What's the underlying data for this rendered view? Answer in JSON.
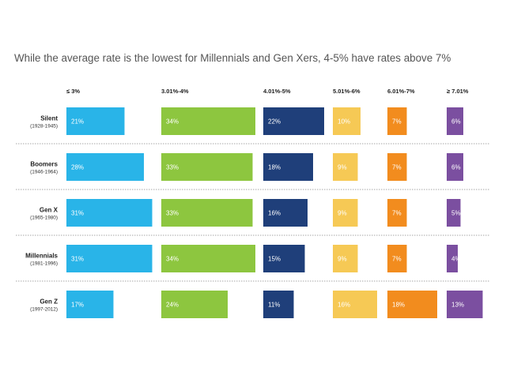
{
  "title": "While the average rate is the lowest for Millennials and Gen Xers, 4-5% have rates above 7%",
  "chart_data": {
    "type": "bar",
    "title": "While the average rate is the lowest for Millennials and Gen Xers, 4-5% have rates above 7%",
    "categories": [
      {
        "name": "Silent",
        "years": "(1928-1945)"
      },
      {
        "name": "Boomers",
        "years": "(1946-1964)"
      },
      {
        "name": "Gen X",
        "years": "(1965-1980)"
      },
      {
        "name": "Millennials",
        "years": "(1981-1996)"
      },
      {
        "name": "Gen Z",
        "years": "(1997-2012)"
      }
    ],
    "series": [
      {
        "name": "≤ 3%",
        "color": "#29b4e8",
        "values": [
          21,
          28,
          31,
          31,
          17
        ],
        "labels": [
          "21%",
          "28%",
          "31%",
          "31%",
          "17%"
        ]
      },
      {
        "name": "3.01%-4%",
        "color": "#8dc63f",
        "values": [
          34,
          33,
          33,
          34,
          24
        ],
        "labels": [
          "34%",
          "33%",
          "33%",
          "34%",
          "24%"
        ]
      },
      {
        "name": "4.01%-5%",
        "color": "#1f3f7a",
        "values": [
          22,
          18,
          16,
          15,
          11
        ],
        "labels": [
          "22%",
          "18%",
          "16%",
          "15%",
          "11%"
        ]
      },
      {
        "name": "5.01%-6%",
        "color": "#f6c955",
        "values": [
          10,
          9,
          9,
          9,
          16
        ],
        "labels": [
          "10%",
          "9%",
          "9%",
          "9%",
          "16%"
        ]
      },
      {
        "name": "6.01%-7%",
        "color": "#f28c1e",
        "values": [
          7,
          7,
          7,
          7,
          18
        ],
        "labels": [
          "7%",
          "7%",
          "7%",
          "7%",
          "18%"
        ]
      },
      {
        "name": "≥ 7.01%",
        "color": "#7b4fa0",
        "values": [
          6,
          6,
          5,
          4,
          13
        ],
        "labels": [
          "6%",
          "6%",
          "5%",
          "4%",
          "13%"
        ]
      }
    ],
    "unit": "%",
    "grid": false,
    "legend": "column headers"
  }
}
